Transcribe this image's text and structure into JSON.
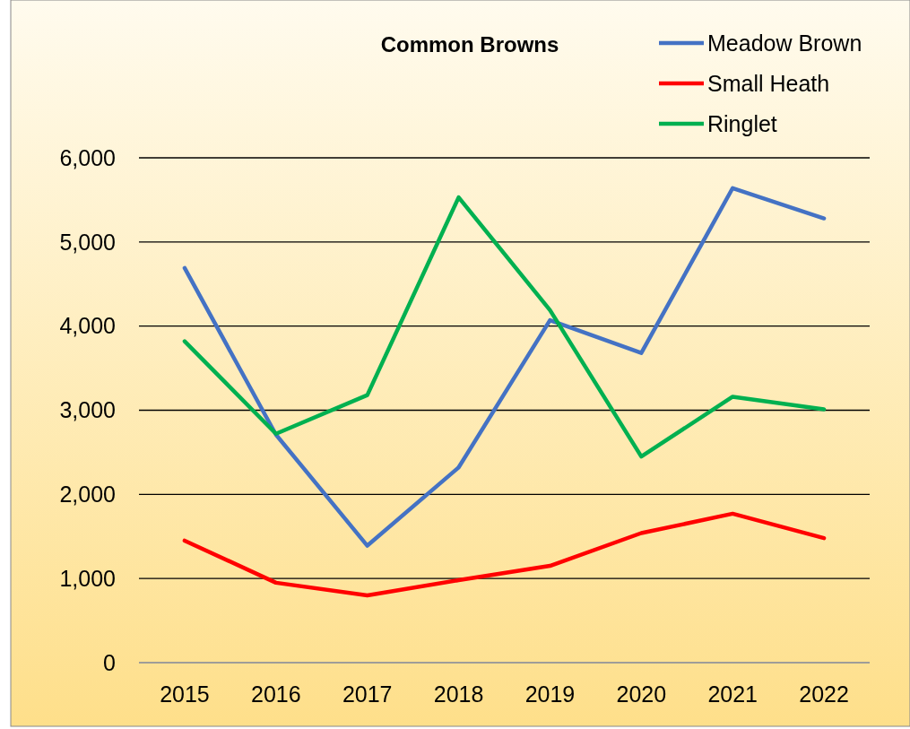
{
  "chart_data": {
    "type": "line",
    "title": "Common Browns",
    "categories": [
      "2015",
      "2016",
      "2017",
      "2018",
      "2019",
      "2020",
      "2021",
      "2022"
    ],
    "series": [
      {
        "name": "Meadow Brown",
        "color": "#4472c4",
        "values": [
          4690,
          2710,
          1390,
          2320,
          4070,
          3680,
          5640,
          5280
        ]
      },
      {
        "name": "Small Heath",
        "color": "#ff0000",
        "values": [
          1450,
          950,
          800,
          980,
          1150,
          1540,
          1770,
          1480
        ]
      },
      {
        "name": "Ringlet",
        "color": "#00b050",
        "values": [
          3820,
          2720,
          3180,
          5530,
          4190,
          2450,
          3160,
          3010
        ]
      }
    ],
    "ylim": [
      0,
      6000
    ],
    "yticks": [
      {
        "value": 0,
        "label": "0"
      },
      {
        "value": 1000,
        "label": "1,000"
      },
      {
        "value": 2000,
        "label": "2,000"
      },
      {
        "value": 3000,
        "label": "3,000"
      },
      {
        "value": 4000,
        "label": "4,000"
      },
      {
        "value": 5000,
        "label": "5,000"
      },
      {
        "value": 6000,
        "label": "6,000"
      }
    ],
    "grid": "y",
    "legend": "top right",
    "marker": "none",
    "line_style": "solid"
  }
}
